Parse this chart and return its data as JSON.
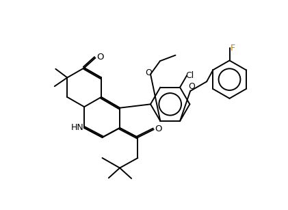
{
  "figsize": [
    4.21,
    3.07
  ],
  "dpi": 100,
  "bg": "#ffffff",
  "lc": "#000000",
  "lc_orange": "#cc7700",
  "lw": 1.4,
  "label_O": "O",
  "label_HN": "HN",
  "label_Cl": "Cl",
  "label_F": "F"
}
